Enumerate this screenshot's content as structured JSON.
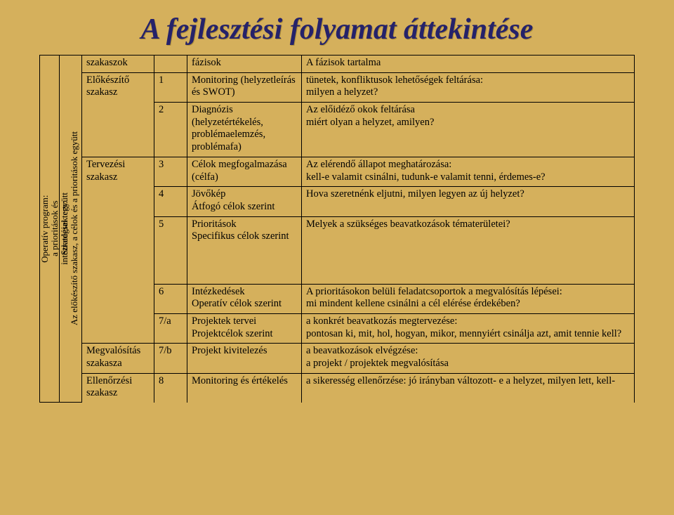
{
  "title": "A fejlesztési folyamat áttekintése",
  "colors": {
    "background": "#d5b05c",
    "title": "#25226a",
    "border": "#000000",
    "text": "#000000"
  },
  "sidebox": {
    "left": "Operatív program:\na prioritások és\nintézkedések együtt",
    "right": "Stratégiai terv:\nAz előkészítő szakasz, a célok és a prioritások együtt"
  },
  "header": {
    "stage": "szakaszok",
    "num": "",
    "phase": "fázisok",
    "desc": "A fázisok tartalma"
  },
  "rows": [
    {
      "stage": "Előkészítő szakasz",
      "stage_span": 2,
      "num": "1",
      "phase": "Monitoring (helyzetleírás és SWOT)",
      "desc": "tünetek, konfliktusok lehetőségek feltárása:\nmilyen a helyzet?"
    },
    {
      "num": "2",
      "phase": "Diagnózis (helyzetértékelés, problémaelemzés, problémafa)",
      "desc": "Az előidéző okok feltárása\nmiért olyan a helyzet, amilyen?"
    },
    {
      "stage": "Tervezési szakasz",
      "stage_span": 5,
      "num": "3",
      "phase": "Célok megfogalmazása (célfa)",
      "desc": "Az elérendő állapot meghatározása:\nkell-e valamit csinálni, tudunk-e valamit tenni, érdemes-e?"
    },
    {
      "num": "4",
      "phase": "Jövőkép\nÁtfogó célok szerint",
      "desc": "Hova szeretnénk eljutni, milyen legyen az új helyzet?"
    },
    {
      "num": "5",
      "phase": "Prioritások\nSpecifikus célok szerint",
      "desc": "Melyek a szükséges beavatkozások tématerületei?",
      "tall": true
    },
    {
      "num": "6",
      "phase": "Intézkedések\nOperatív célok szerint",
      "desc": "A prioritásokon belüli feladatcsoportok a megvalósítás lépései:\nmi mindent kellene csinálni a cél elérése érdekében?"
    },
    {
      "num": "7/a",
      "phase": "Projektek tervei\nProjektcélok szerint",
      "desc": "a konkrét beavatkozás megtervezése:\npontosan ki, mit, hol, hogyan, mikor, mennyiért csinálja azt, amit tennie kell?"
    },
    {
      "stage": "Megvalósítás szakasza",
      "stage_span": 1,
      "num": "7/b",
      "phase": "Projekt kivitelezés",
      "desc": "a beavatkozások elvégzése:\na projekt / projektek megvalósítása"
    },
    {
      "stage": "Ellenőrzési szakasz",
      "stage_span": 1,
      "num": "8",
      "phase": "Monitoring és értékelés",
      "desc": "a sikeresség ellenőrzése: jó irányban változott- e a helyzet, milyen lett, kell-",
      "cut": true
    }
  ]
}
